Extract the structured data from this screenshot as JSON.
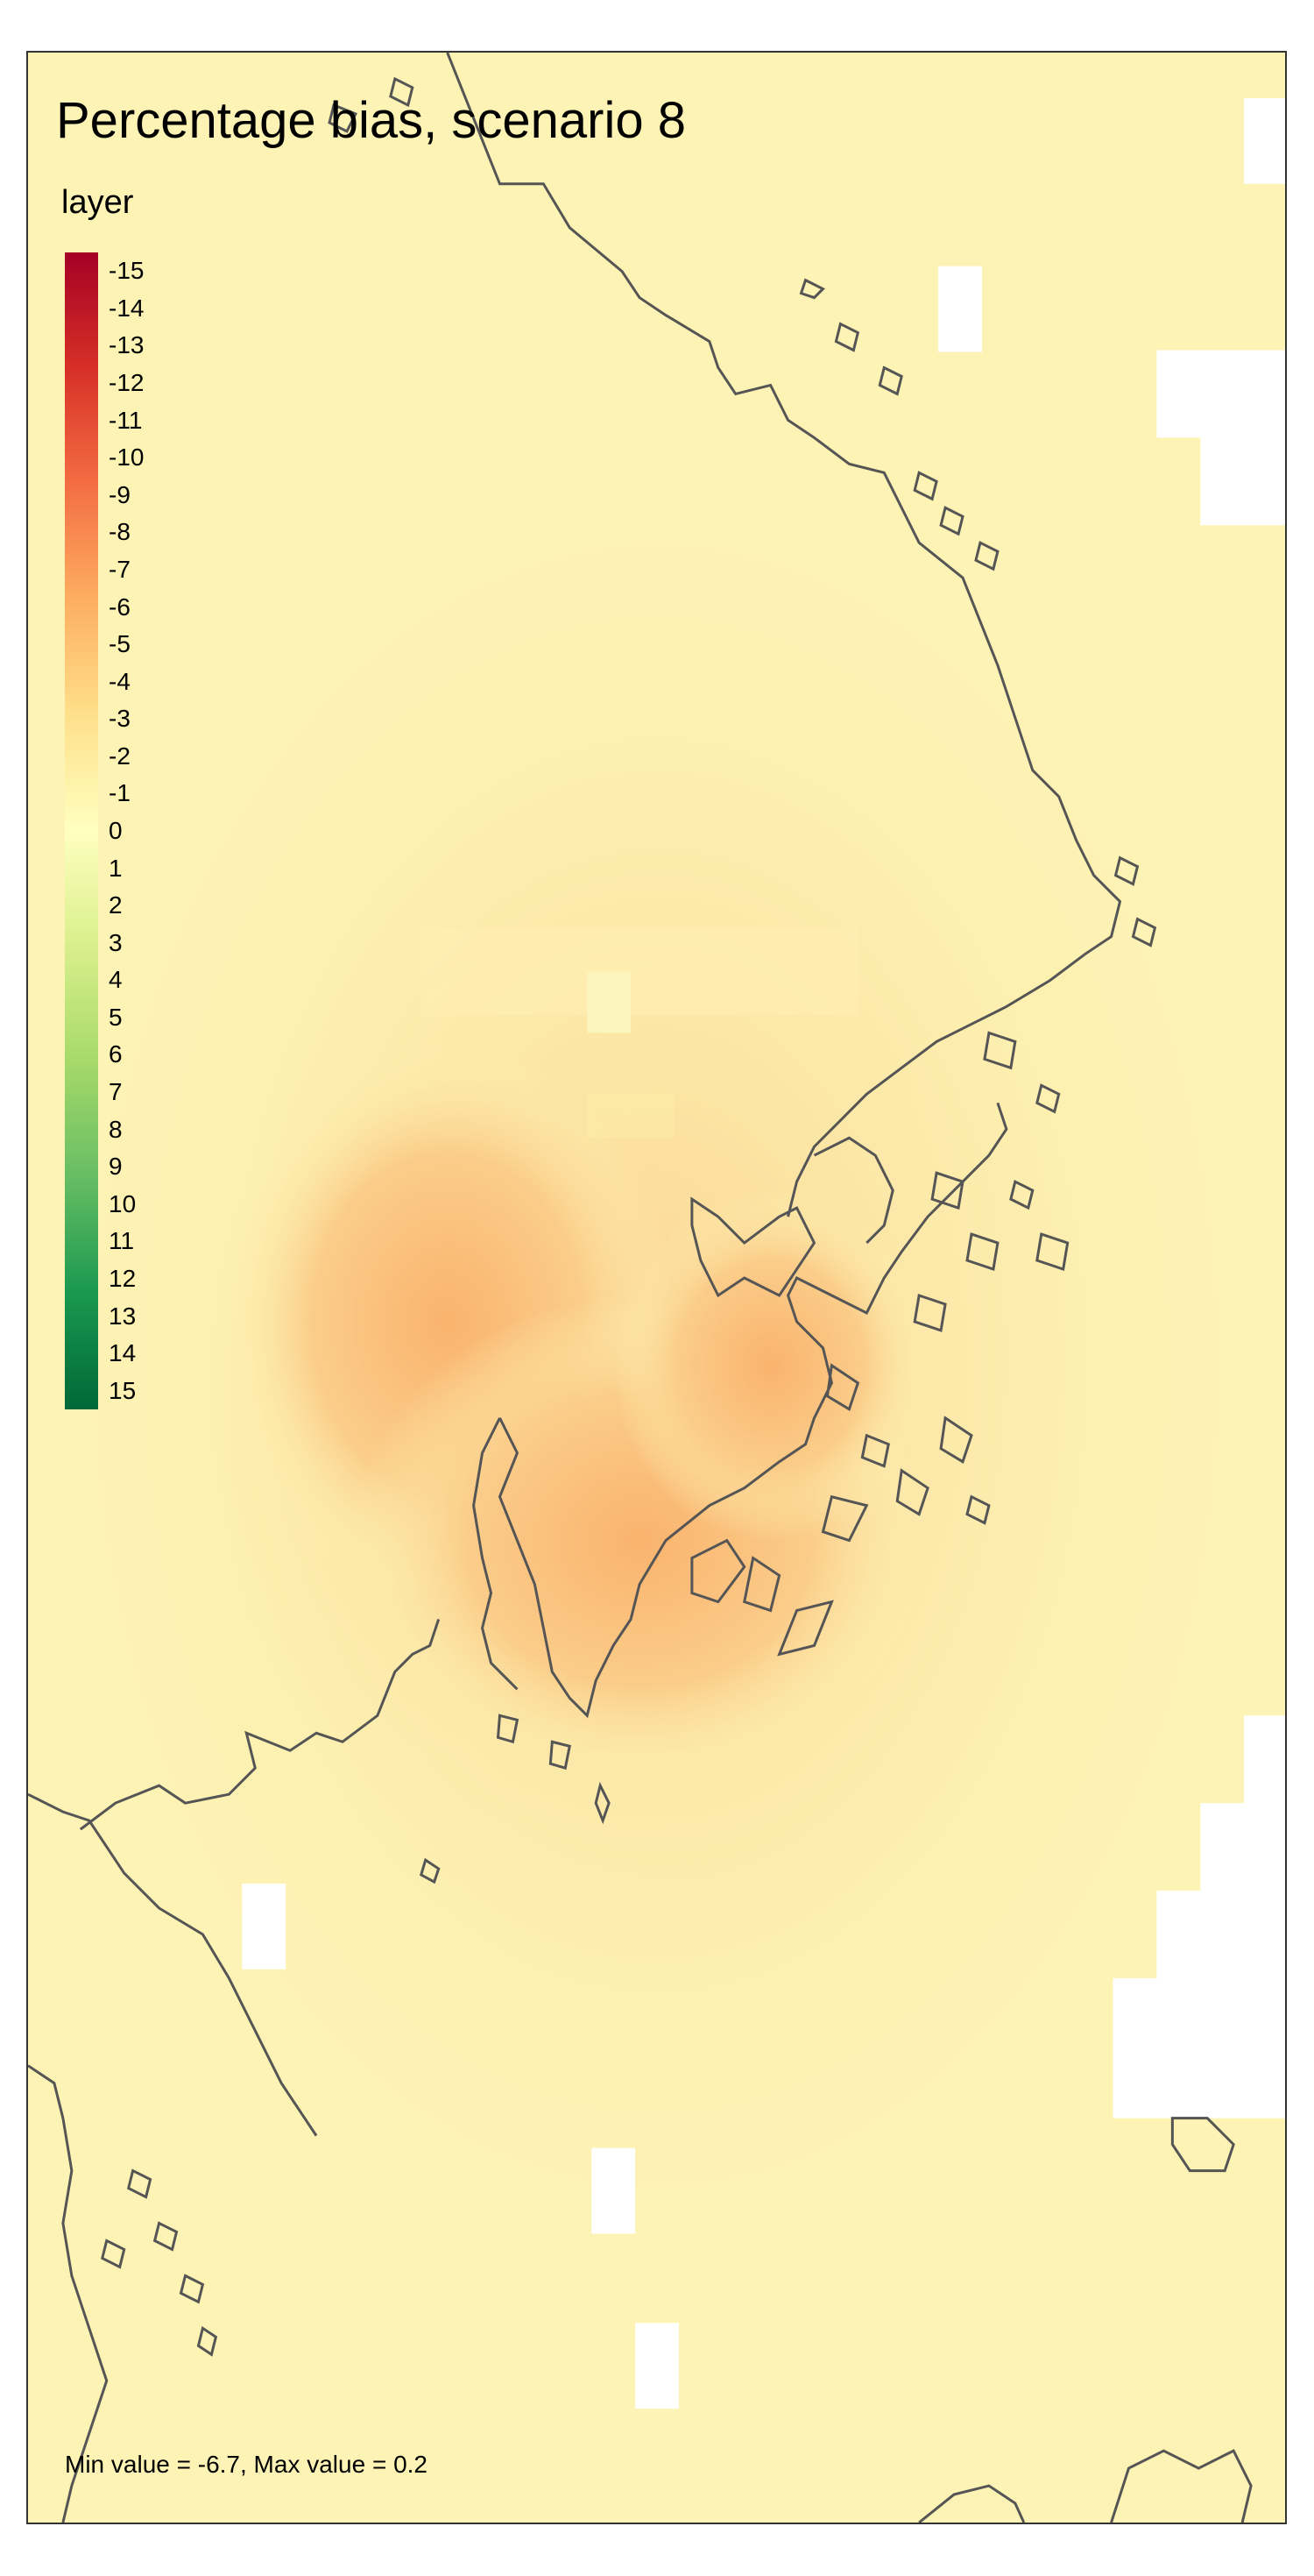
{
  "title": "Percentage bias, scenario 8",
  "legend": {
    "title": "layer",
    "labels": [
      "-15",
      "-14",
      "-13",
      "-12",
      "-11",
      "-10",
      "-9",
      "-8",
      "-7",
      "-6",
      "-5",
      "-4",
      "-3",
      "-2",
      "-1",
      "0",
      "1",
      "2",
      "3",
      "4",
      "5",
      "6",
      "7",
      "8",
      "9",
      "10",
      "11",
      "12",
      "13",
      "14",
      "15"
    ],
    "min": -15,
    "max": 15,
    "color_stops": [
      "#a50026",
      "#d73027",
      "#f46d43",
      "#fdae61",
      "#fee08b",
      "#ffffbf",
      "#d9ef8b",
      "#a6d96a",
      "#66bd63",
      "#1a9850",
      "#006837"
    ]
  },
  "stats_text": "Min value = -6.7, Max value = 0.2",
  "colors": {
    "background_field": "#fdf3b4",
    "coastline": "#555555",
    "no_data": "#ffffff"
  }
}
